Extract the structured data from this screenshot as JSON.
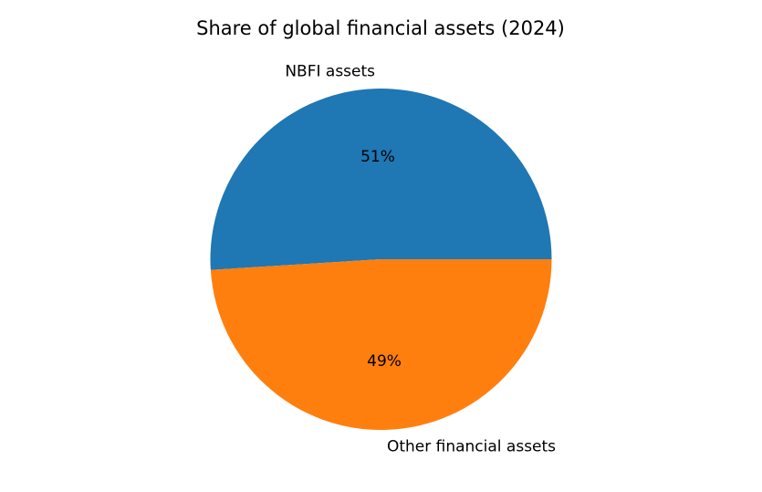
{
  "chart_data": {
    "type": "pie",
    "title": "Share of global financial assets (2024)",
    "categories": [
      "NBFI assets",
      "Other financial assets"
    ],
    "values": [
      51,
      49
    ],
    "value_labels": [
      "51%",
      "49%"
    ],
    "colors": [
      "#1f77b4",
      "#ff7f0e"
    ]
  }
}
